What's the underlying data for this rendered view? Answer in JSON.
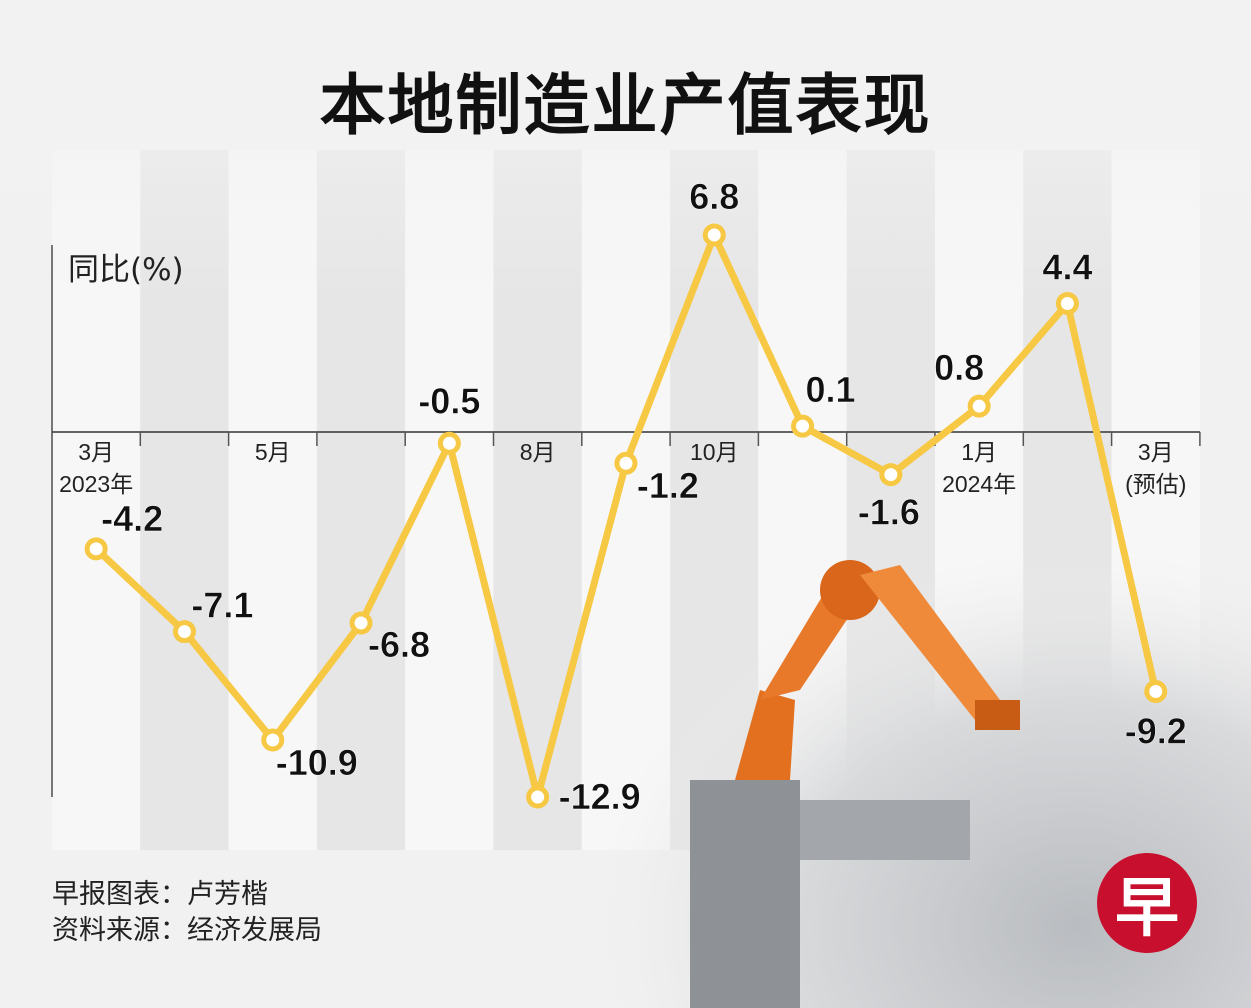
{
  "title": "本地制造业产值表现",
  "credits": [
    "早报图表：卢芳楷",
    "资料来源：经济发展局"
  ],
  "logo_text": "早",
  "colors": {
    "line": "#f6c843",
    "marker_fill": "#ffffff",
    "logo": "#c8102e",
    "text": "#111111"
  },
  "chart_data": {
    "type": "line",
    "title": "本地制造业产值表现",
    "ylabel": "同比(%)",
    "xlabel": "",
    "x_tick_labels": [
      {
        "index": 0,
        "lines": [
          "3月",
          "2023年"
        ]
      },
      {
        "index": 2,
        "lines": [
          "5月"
        ]
      },
      {
        "index": 5,
        "lines": [
          "8月"
        ]
      },
      {
        "index": 7,
        "lines": [
          "10月"
        ]
      },
      {
        "index": 10,
        "lines": [
          "1月",
          "2024年"
        ]
      },
      {
        "index": 12,
        "lines": [
          "3月",
          "(预估)"
        ]
      }
    ],
    "categories": [
      "2023-03",
      "2023-04",
      "2023-05",
      "2023-06",
      "2023-07",
      "2023-08",
      "2023-09",
      "2023-10",
      "2023-11",
      "2023-12",
      "2024-01",
      "2024-02",
      "2024-03 (预估)"
    ],
    "values": [
      -4.2,
      -7.1,
      -10.9,
      -6.8,
      -0.5,
      -12.9,
      -1.2,
      6.8,
      0.1,
      -1.6,
      0.8,
      4.4,
      -9.2
    ],
    "data_labels": [
      "-4.2",
      "-7.1",
      "-10.9",
      "-6.8",
      "-0.5",
      "-12.9",
      "-1.2",
      "6.8",
      "0.1",
      "-1.6",
      "0.8",
      "4.4",
      "-9.2"
    ],
    "ylim": [
      -13,
      7
    ],
    "grid": false,
    "legend": "none"
  }
}
